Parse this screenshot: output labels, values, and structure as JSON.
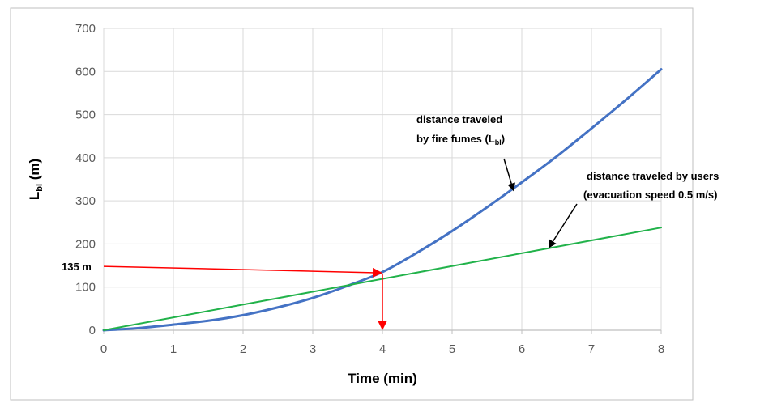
{
  "chart_data": {
    "type": "line",
    "title": "",
    "xlabel": "Time (min)",
    "ylabel": {
      "main": "L",
      "sub": "bl",
      "unit": " (m)"
    },
    "xlim": [
      0,
      8
    ],
    "ylim": [
      0,
      700
    ],
    "x_ticks": [
      0,
      1,
      2,
      3,
      4,
      5,
      6,
      7,
      8
    ],
    "y_ticks": [
      0,
      100,
      200,
      300,
      400,
      500,
      600,
      700
    ],
    "grid": true,
    "legend": "none",
    "series": [
      {
        "color": "#4472C4",
        "x": [
          0,
          0.5,
          1,
          1.5,
          2,
          2.5,
          3,
          3.5,
          4,
          4.5,
          5,
          5.5,
          6,
          6.5,
          7,
          7.5,
          8
        ],
        "y": [
          0,
          5,
          13,
          22,
          35,
          53,
          75,
          103,
          135,
          180,
          230,
          285,
          343,
          403,
          468,
          535,
          605
        ]
      },
      {
        "color": "#21B24A",
        "x": [
          0,
          8
        ],
        "y": [
          0,
          238
        ]
      }
    ],
    "annotations": [
      {
        "id": "fumes-label",
        "lines": [
          "distance traveled",
          "by fire fumes (L"
        ],
        "sub": "bl",
        "close": ")",
        "arrow_to": [
          5.9,
          335
        ]
      },
      {
        "id": "users-label",
        "lines": [
          "distance traveled by users",
          "(evacuation speed 0.5 m/s)"
        ],
        "arrow_to": [
          6.35,
          197
        ]
      },
      {
        "id": "marker",
        "text": "135 m",
        "y": 135,
        "x": 4,
        "color": "#FF0000"
      }
    ]
  }
}
